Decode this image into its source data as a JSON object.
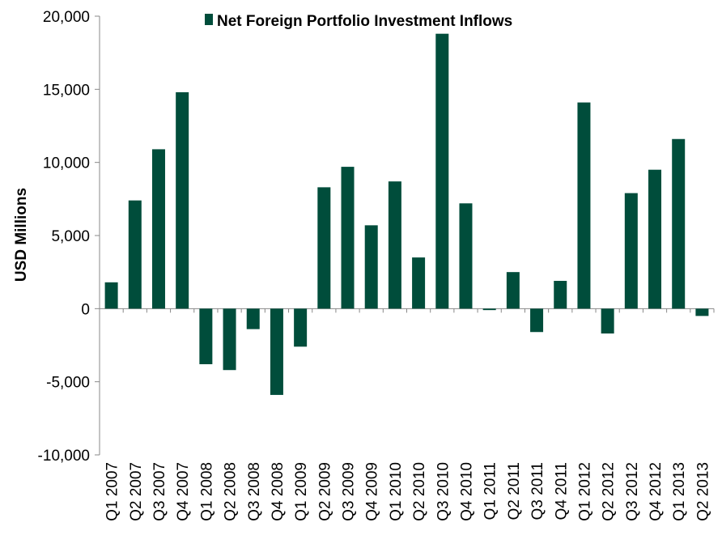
{
  "chart_data": {
    "type": "bar",
    "title": "",
    "xlabel": "",
    "ylabel": "USD Millions",
    "ylim": [
      -10000,
      20000
    ],
    "yticks": [
      20000,
      15000,
      10000,
      5000,
      0,
      -5000,
      -10000
    ],
    "ytick_labels": [
      "20,000",
      "15,000",
      "10,000",
      "5,000",
      "0",
      "-5,000",
      "-10,000"
    ],
    "grid": false,
    "legend_position": "top-center",
    "categories": [
      "Q1 2007",
      "Q2 2007",
      "Q3 2007",
      "Q4 2007",
      "Q1 2008",
      "Q2 2008",
      "Q3 2008",
      "Q4 2008",
      "Q1 2009",
      "Q2 2009",
      "Q3 2009",
      "Q4 2009",
      "Q1 2010",
      "Q2 2010",
      "Q3 2010",
      "Q4 2010",
      "Q1 2011",
      "Q2 2011",
      "Q3 2011",
      "Q4 2011",
      "Q1 2012",
      "Q2 2012",
      "Q3 2012",
      "Q4 2012",
      "Q1 2013",
      "Q2 2013"
    ],
    "series": [
      {
        "name": "Net Foreign Portfolio Investment Inflows",
        "color": "#004d3b",
        "values": [
          1800,
          7400,
          10900,
          14800,
          -3800,
          -4200,
          -1400,
          -5900,
          -2600,
          8300,
          9700,
          5700,
          8700,
          3500,
          18800,
          7200,
          -100,
          2500,
          -1600,
          1900,
          14100,
          -1700,
          7900,
          9500,
          11600,
          -500
        ]
      }
    ]
  }
}
